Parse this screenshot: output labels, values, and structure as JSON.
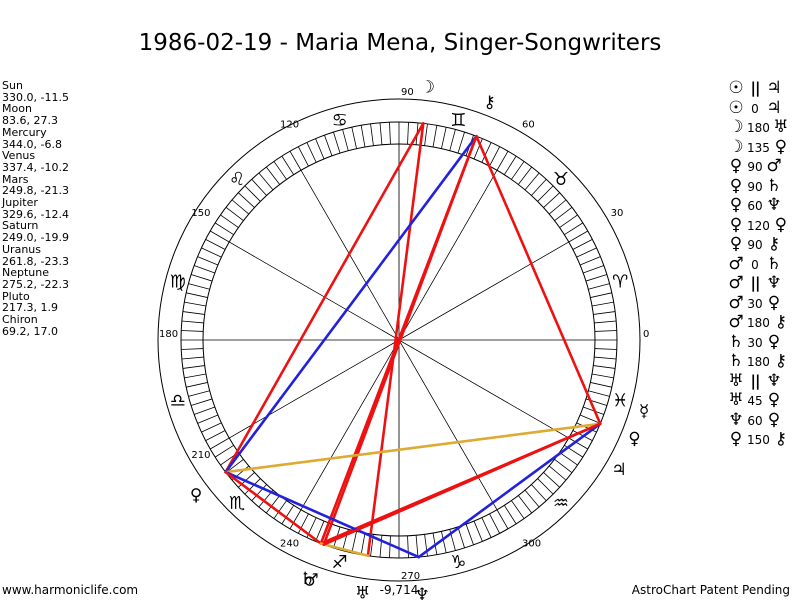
{
  "title": "1986-02-19 - Maria Mena, Singer-Songwriters",
  "footer": {
    "left": "www.harmoniclife.com",
    "right": "AstroChart Patent Pending"
  },
  "planets": [
    {
      "name": "Sun",
      "coords": "330.0, -11.5",
      "glyph": "☉",
      "lon": 330.0,
      "lat": -11.5
    },
    {
      "name": "Moon",
      "coords": "83.6, 27.3",
      "glyph": "☽",
      "lon": 83.6,
      "lat": 27.3
    },
    {
      "name": "Mercury",
      "coords": "344.0, -6.8",
      "glyph": "☿",
      "lon": 344.0,
      "lat": -6.8
    },
    {
      "name": "Venus",
      "coords": "337.4, -10.2",
      "glyph": "♀",
      "lon": 337.4,
      "lat": -10.2
    },
    {
      "name": "Mars",
      "coords": "249.8, -21.3",
      "glyph": "♂",
      "lon": 249.8,
      "lat": -21.3
    },
    {
      "name": "Jupiter",
      "coords": "329.6, -12.4",
      "glyph": "♃",
      "lon": 329.6,
      "lat": -12.4
    },
    {
      "name": "Saturn",
      "coords": "249.0, -19.9",
      "glyph": "♄",
      "lon": 249.0,
      "lat": -19.9
    },
    {
      "name": "Uranus",
      "coords": "261.8, -23.3",
      "glyph": "♅",
      "lon": 261.8,
      "lat": -23.3
    },
    {
      "name": "Neptune",
      "coords": "275.2, -22.3",
      "glyph": "♆",
      "lon": 275.2,
      "lat": -22.3
    },
    {
      "name": "Pluto",
      "coords": "217.3, 1.9",
      "glyph": "♀",
      "lon": 217.3,
      "lat": 1.9
    },
    {
      "name": "Chiron",
      "coords": "69.2, 17.0",
      "glyph": "⚷",
      "lon": 69.2,
      "lat": 17.0
    }
  ],
  "aspects": [
    {
      "p1": "☉",
      "aspect": "||",
      "p2": "♃"
    },
    {
      "p1": "☉",
      "aspect": "0",
      "p2": "♃"
    },
    {
      "p1": "☽",
      "aspect": "180",
      "p2": "♅"
    },
    {
      "p1": "☽",
      "aspect": "135",
      "p2": "♀"
    },
    {
      "p1": "♀",
      "aspect": "90",
      "p2": "♂"
    },
    {
      "p1": "♀",
      "aspect": "90",
      "p2": "♄"
    },
    {
      "p1": "♀",
      "aspect": "60",
      "p2": "♆"
    },
    {
      "p1": "♀",
      "aspect": "120",
      "p2": "♀"
    },
    {
      "p1": "♀",
      "aspect": "90",
      "p2": "⚷"
    },
    {
      "p1": "♂",
      "aspect": "0",
      "p2": "♄"
    },
    {
      "p1": "♂",
      "aspect": "||",
      "p2": "♆"
    },
    {
      "p1": "♂",
      "aspect": "30",
      "p2": "♀"
    },
    {
      "p1": "♂",
      "aspect": "180",
      "p2": "⚷"
    },
    {
      "p1": "♄",
      "aspect": "30",
      "p2": "♀"
    },
    {
      "p1": "♄",
      "aspect": "180",
      "p2": "⚷"
    },
    {
      "p1": "♅",
      "aspect": "||",
      "p2": "♆"
    },
    {
      "p1": "♅",
      "aspect": "45",
      "p2": "♀"
    },
    {
      "p1": "♆",
      "aspect": "60",
      "p2": "♀"
    },
    {
      "p1": "♀",
      "aspect": "150",
      "p2": "⚷"
    }
  ],
  "wheel": {
    "degree_labels": [
      "0",
      "30",
      "60",
      "90",
      "120",
      "150",
      "180",
      "210",
      "240",
      "270",
      "300"
    ],
    "sign_glyphs": [
      "♈",
      "♉",
      "♊",
      "♋",
      "♌",
      "♍",
      "♎",
      "♏",
      "♐",
      "♑",
      "♒",
      "♓"
    ],
    "bottom_value": "-9,714"
  },
  "aspect_lines": [
    {
      "from": "Moon",
      "to": "Uranus",
      "color": "#ee1111"
    },
    {
      "from": "Moon",
      "to": "Pluto",
      "color": "#ee1111"
    },
    {
      "from": "Chiron",
      "to": "Pluto",
      "color": "#2222dd"
    },
    {
      "from": "Chiron",
      "to": "Saturn",
      "color": "#ee1111"
    },
    {
      "from": "Chiron",
      "to": "Mars",
      "color": "#ee1111"
    },
    {
      "from": "Chiron",
      "to": "Venus",
      "color": "#ee1111"
    },
    {
      "from": "Venus",
      "to": "Pluto",
      "color": "#ddaa33"
    },
    {
      "from": "Venus",
      "to": "Saturn",
      "color": "#ee1111"
    },
    {
      "from": "Venus",
      "to": "Neptune",
      "color": "#2222dd"
    },
    {
      "from": "Pluto",
      "to": "Neptune",
      "color": "#2222dd"
    },
    {
      "from": "Pluto",
      "to": "Saturn",
      "color": "#ee1111"
    },
    {
      "from": "Saturn",
      "to": "Uranus",
      "color": "#ddaa33"
    },
    {
      "from": "Venus",
      "to": "Mars",
      "color": "#ee1111"
    }
  ]
}
